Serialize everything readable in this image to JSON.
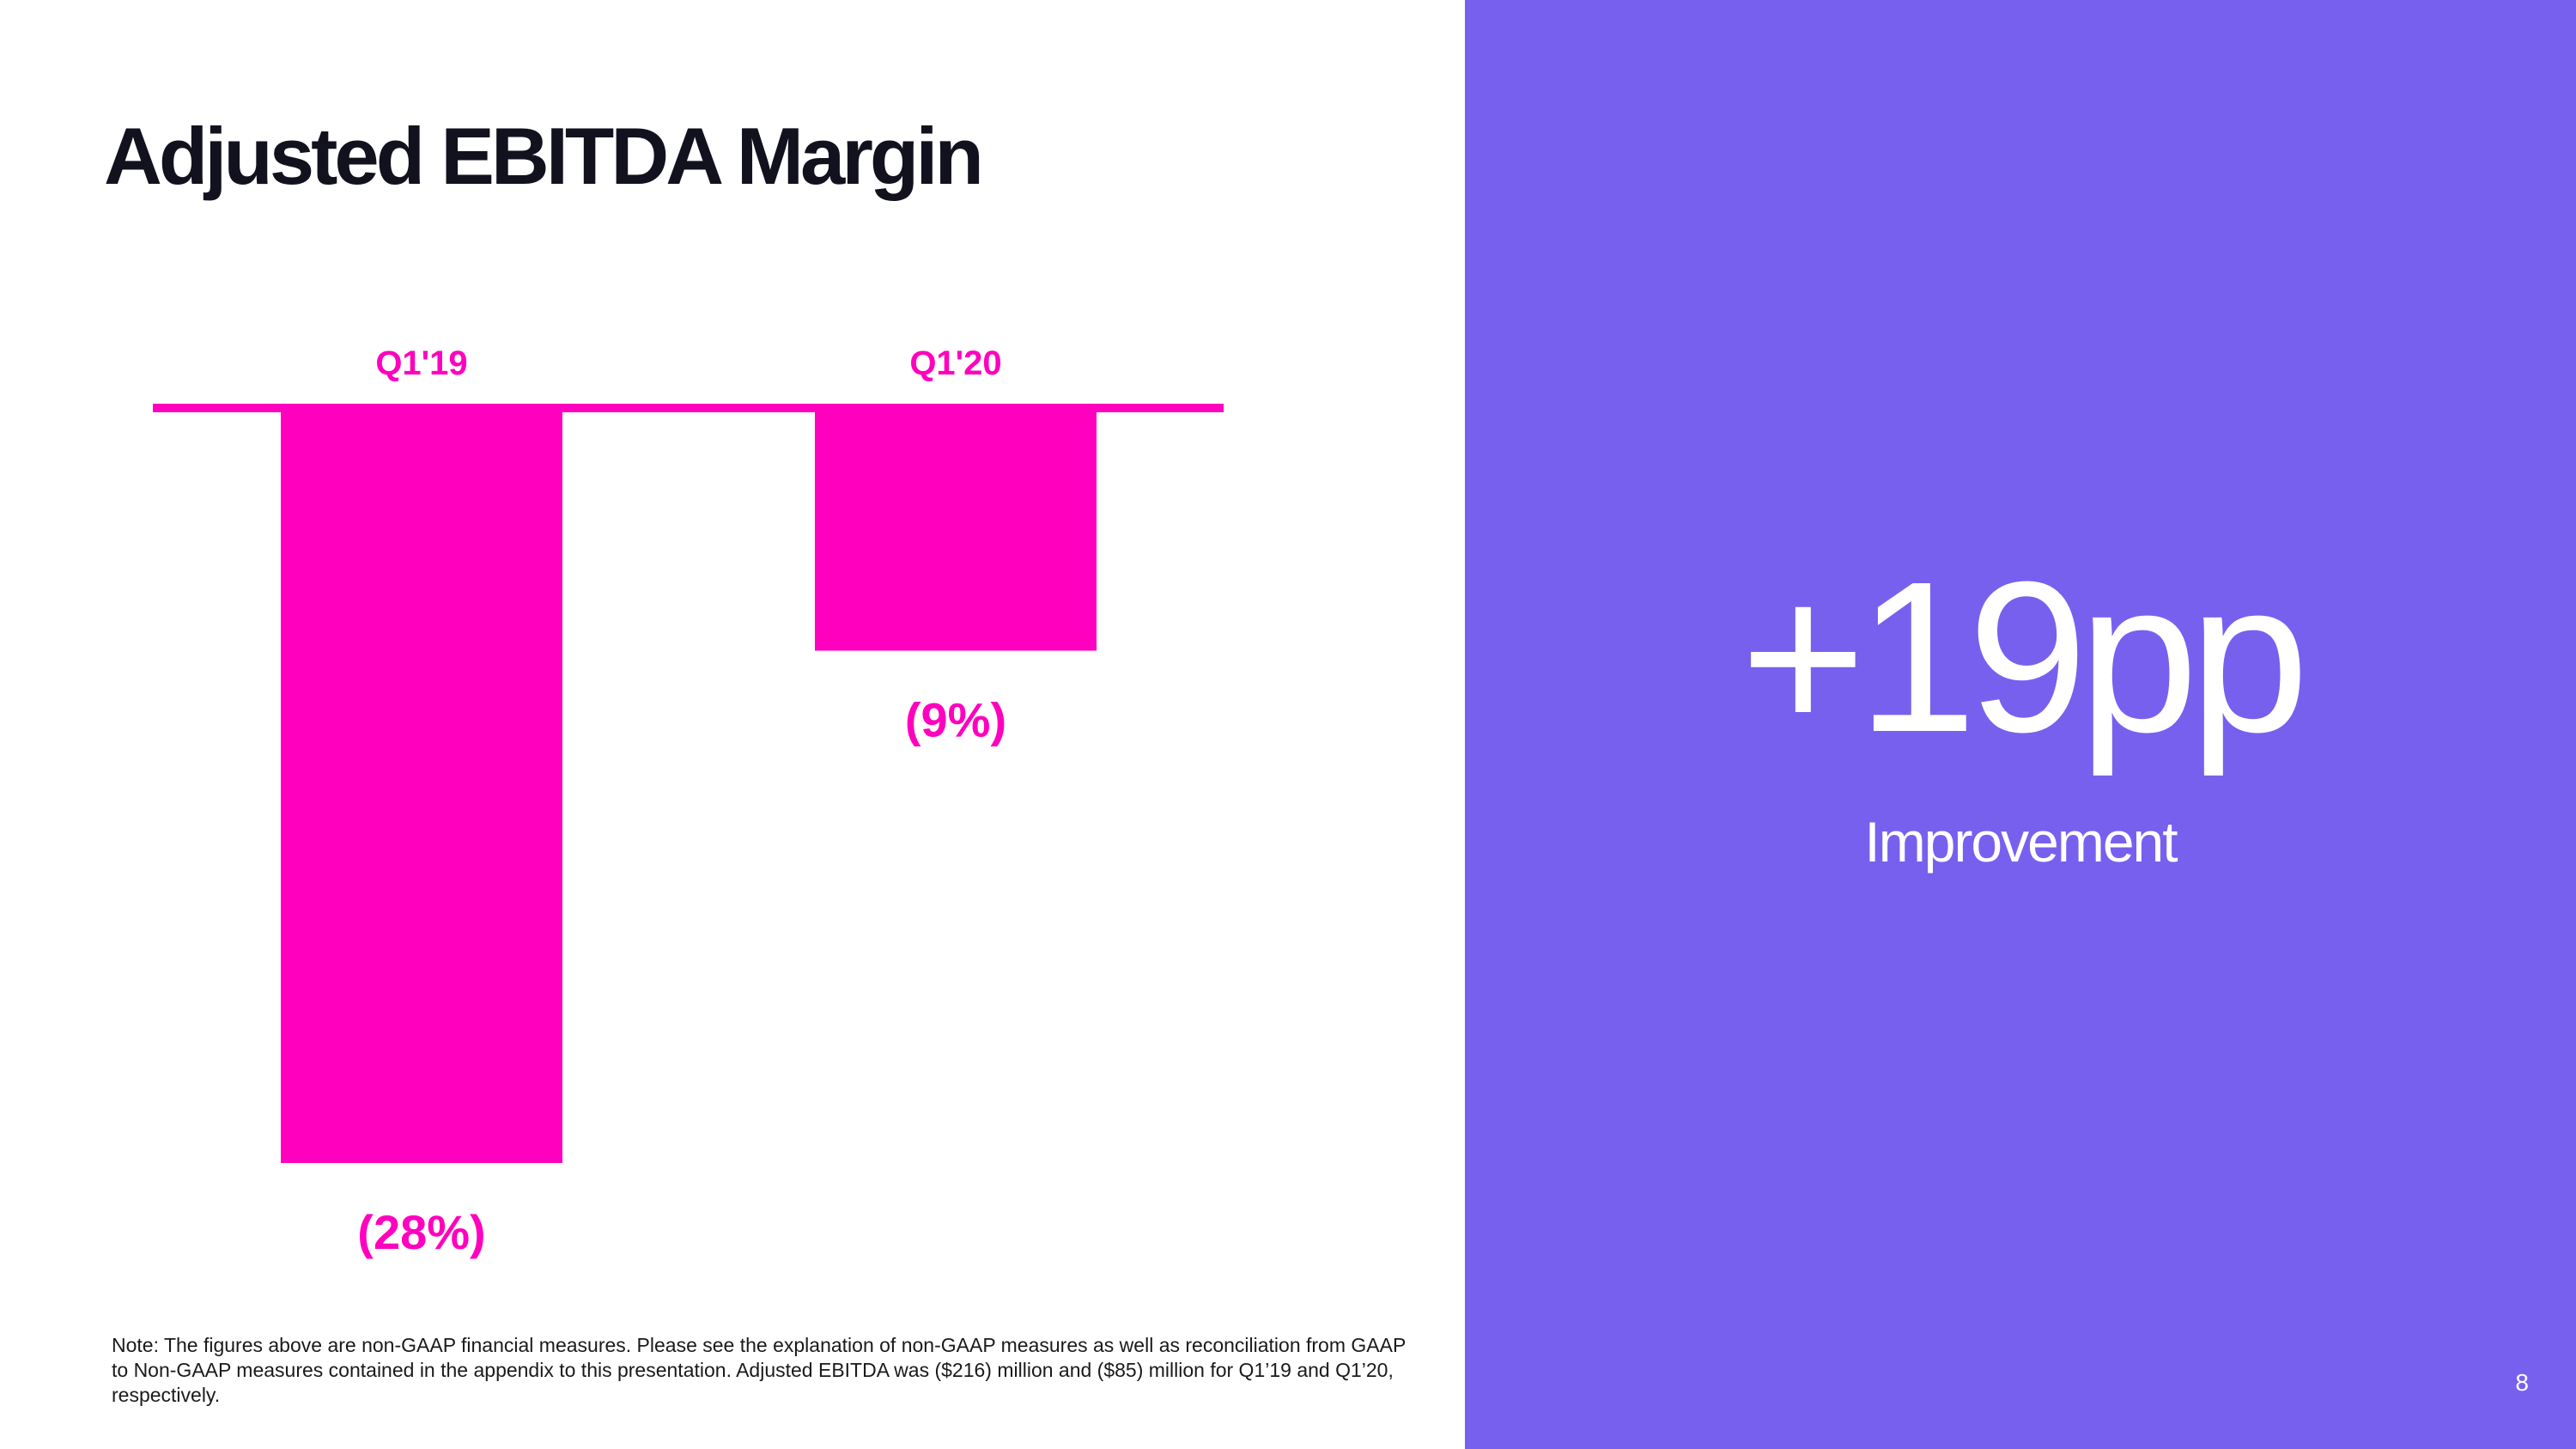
{
  "slide": {
    "title": "Adjusted EBITDA Margin",
    "note": "Note:  The figures above are non-GAAP financial measures. Please see the explanation of non-GAAP measures as well as reconciliation from GAAP to Non-GAAP measures contained in the appendix to this presentation. Adjusted EBITDA was ($216) million and ($85) million for Q1’19 and Q1’20, respectively.",
    "page_number": "8"
  },
  "highlight": {
    "value": "+19pp",
    "caption": "Improvement"
  },
  "colors": {
    "accent": "#ff00bf",
    "panel": "#7860ef",
    "title": "#12121f"
  },
  "chart_data": {
    "type": "bar",
    "categories": [
      "Q1'19",
      "Q1'20"
    ],
    "values": [
      -28,
      -9
    ],
    "value_labels": [
      "(28%)",
      "(9%)"
    ],
    "title": "Adjusted EBITDA Margin",
    "xlabel": "",
    "ylabel": "",
    "ylim": [
      -28,
      0
    ],
    "grid": false,
    "legend": "none"
  }
}
